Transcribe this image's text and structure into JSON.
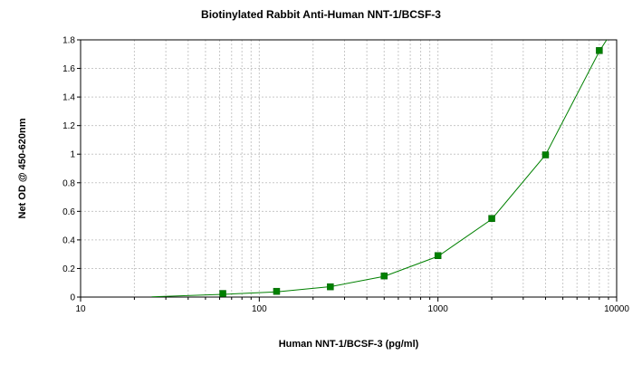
{
  "chart_data": {
    "type": "scatter",
    "title": "Biotinylated Rabbit Anti-Human NNT-1/BCSF-3",
    "xlabel": "Human NNT-1/BCSF-3 (pg/ml)",
    "ylabel": "Net OD @ 450-620nm",
    "x_scale": "log",
    "xlim": [
      10,
      10000
    ],
    "ylim": [
      0,
      1.8
    ],
    "x_ticks": [
      10,
      100,
      1000,
      10000
    ],
    "x_tick_labels": [
      "10",
      "100",
      "1000",
      "10000"
    ],
    "y_ticks": [
      0,
      0.2,
      0.4,
      0.6,
      0.8,
      1,
      1.2,
      1.4,
      1.6,
      1.8
    ],
    "y_tick_labels": [
      "0",
      "0.2",
      "0.4",
      "0.6",
      "0.8",
      "1",
      "1.2",
      "1.4",
      "1.6",
      "1.8"
    ],
    "grid": true,
    "series": [
      {
        "kind": "points",
        "marker": "square",
        "color": "#008000",
        "points": [
          {
            "x": 62.5,
            "y": 0.025
          },
          {
            "x": 125,
            "y": 0.04
          },
          {
            "x": 250,
            "y": 0.072
          },
          {
            "x": 500,
            "y": 0.148
          },
          {
            "x": 1000,
            "y": 0.29
          },
          {
            "x": 2000,
            "y": 0.55
          },
          {
            "x": 4000,
            "y": 0.995
          },
          {
            "x": 8000,
            "y": 1.725
          }
        ]
      },
      {
        "kind": "fit-curve",
        "color": "#008000",
        "points": [
          {
            "x": 25,
            "y": 0.002
          },
          {
            "x": 62.5,
            "y": 0.019
          },
          {
            "x": 125,
            "y": 0.037
          },
          {
            "x": 250,
            "y": 0.073
          },
          {
            "x": 500,
            "y": 0.145
          },
          {
            "x": 1000,
            "y": 0.285
          },
          {
            "x": 2000,
            "y": 0.545
          },
          {
            "x": 4000,
            "y": 0.995
          },
          {
            "x": 8000,
            "y": 1.72
          },
          {
            "x": 9000,
            "y": 1.82
          }
        ]
      }
    ]
  }
}
